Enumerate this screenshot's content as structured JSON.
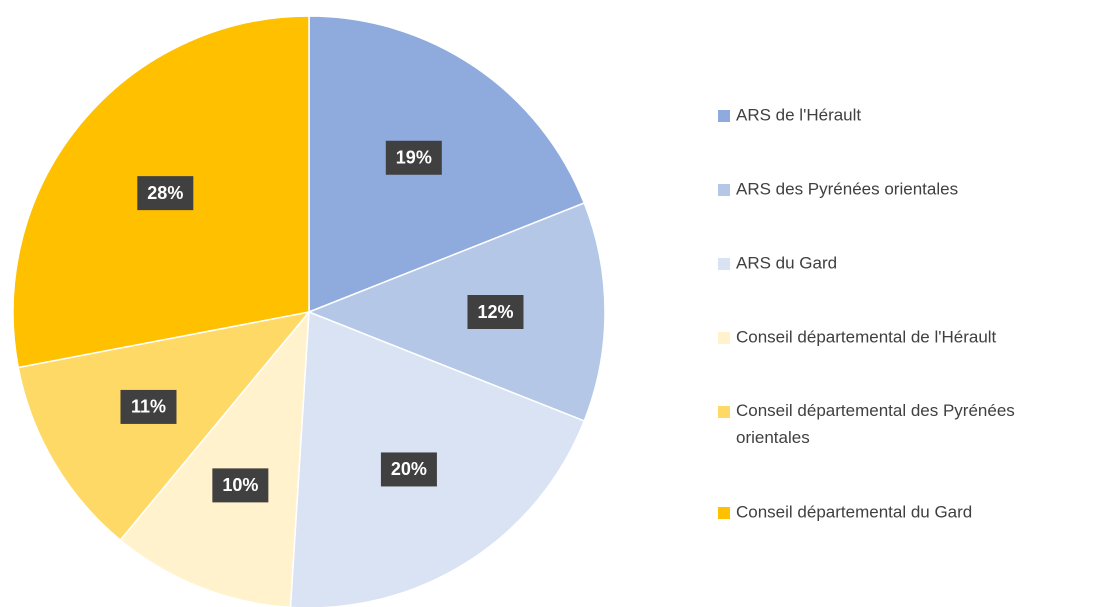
{
  "chart_data": {
    "type": "pie",
    "categories": [
      "ARS de l'Hérault",
      "ARS des Pyrénées orientales",
      "ARS du Gard",
      "Conseil départemental de l'Hérault",
      "Conseil départemental des Pyrénées orientales",
      "Conseil départemental du Gard"
    ],
    "values": [
      19,
      12,
      20,
      10,
      11,
      28
    ],
    "value_labels": [
      "19%",
      "12%",
      "20%",
      "10%",
      "11%",
      "28%"
    ],
    "colors": [
      "#8faadc",
      "#b4c7e7",
      "#dae3f3",
      "#fff2cc",
      "#ffd966",
      "#ffc000"
    ],
    "legend": "right"
  }
}
